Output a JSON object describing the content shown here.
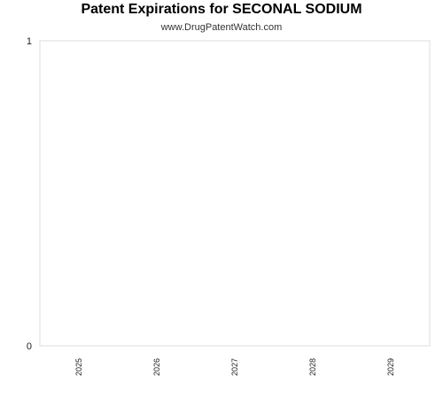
{
  "chart_data": {
    "type": "bar",
    "title": "Patent Expirations for SECONAL SODIUM",
    "subtitle": "www.DrugPatentWatch.com",
    "categories": [
      "2025",
      "2026",
      "2027",
      "2028",
      "2029"
    ],
    "values": [
      0,
      0,
      0,
      0,
      0
    ],
    "xlabel": "",
    "ylabel": "",
    "ylim": [
      0,
      1
    ],
    "yticks": [
      "0",
      "1"
    ],
    "grid": false,
    "colors": {
      "plot_border": "#dddddd",
      "background": "#ffffff"
    }
  }
}
